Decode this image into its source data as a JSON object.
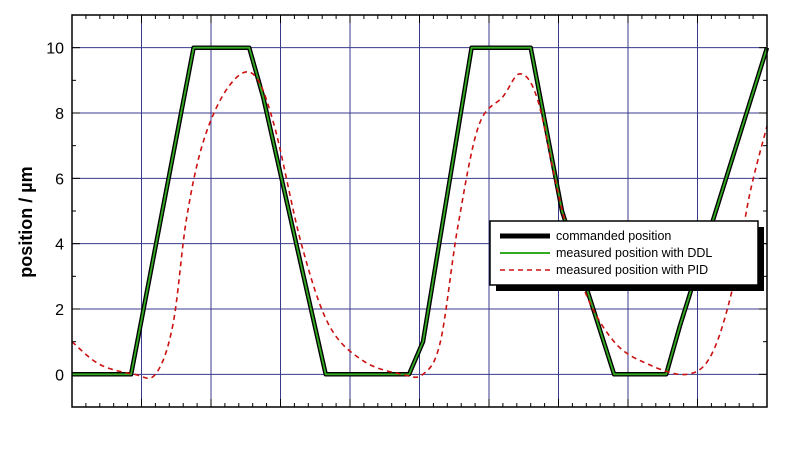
{
  "chart_data": {
    "type": "line",
    "title": "",
    "xlabel": "",
    "ylabel": "position  / µm",
    "xlim": [
      0,
      10
    ],
    "ylim": [
      -1,
      11
    ],
    "yticks": [
      "0",
      "2",
      "4",
      "6",
      "8",
      "10"
    ],
    "x_tick_labels_shown": false,
    "grid": true,
    "legend_position": "center-right",
    "series": [
      {
        "name": "commanded position",
        "color": "#000000",
        "style": "solid-thick",
        "x": [
          0,
          0.85,
          1.75,
          2.55,
          2.75,
          3.65,
          4.85,
          5.05,
          5.75,
          6.6,
          7.05,
          7.8,
          8.55,
          8.75,
          10
        ],
        "y": [
          0,
          0,
          10,
          10,
          8.5,
          0,
          0,
          1,
          10,
          10,
          5,
          0,
          0,
          1.5,
          10
        ]
      },
      {
        "name": "measured position with DDL",
        "color": "#33aa22",
        "style": "solid",
        "x": [
          0,
          0.85,
          1.75,
          2.55,
          2.75,
          3.65,
          4.85,
          5.05,
          5.75,
          6.6,
          7.05,
          7.8,
          8.55,
          8.75,
          10
        ],
        "y": [
          0,
          0,
          10,
          10,
          8.5,
          0,
          0,
          1,
          10,
          10,
          5,
          0,
          0,
          1.5,
          10
        ]
      },
      {
        "name": "measured position with PID",
        "color": "#cc1111",
        "style": "dashed",
        "x": [
          0,
          0.4,
          0.9,
          1.2,
          1.45,
          1.65,
          1.9,
          2.25,
          2.6,
          2.9,
          3.3,
          3.7,
          4.2,
          4.75,
          5.05,
          5.3,
          5.55,
          5.85,
          6.2,
          6.45,
          6.7,
          7.0,
          7.35,
          7.8,
          8.3,
          8.85,
          9.2,
          9.5,
          9.75,
          10
        ],
        "y": [
          1.0,
          0.3,
          0,
          0,
          1.5,
          4.8,
          7.2,
          8.8,
          9.2,
          7.7,
          4.0,
          1.5,
          0.4,
          0,
          0,
          1.0,
          4.5,
          7.6,
          8.5,
          9.2,
          8.4,
          5.5,
          2.7,
          1.0,
          0.3,
          0,
          0.6,
          2.6,
          5.5,
          7.6
        ]
      }
    ]
  }
}
